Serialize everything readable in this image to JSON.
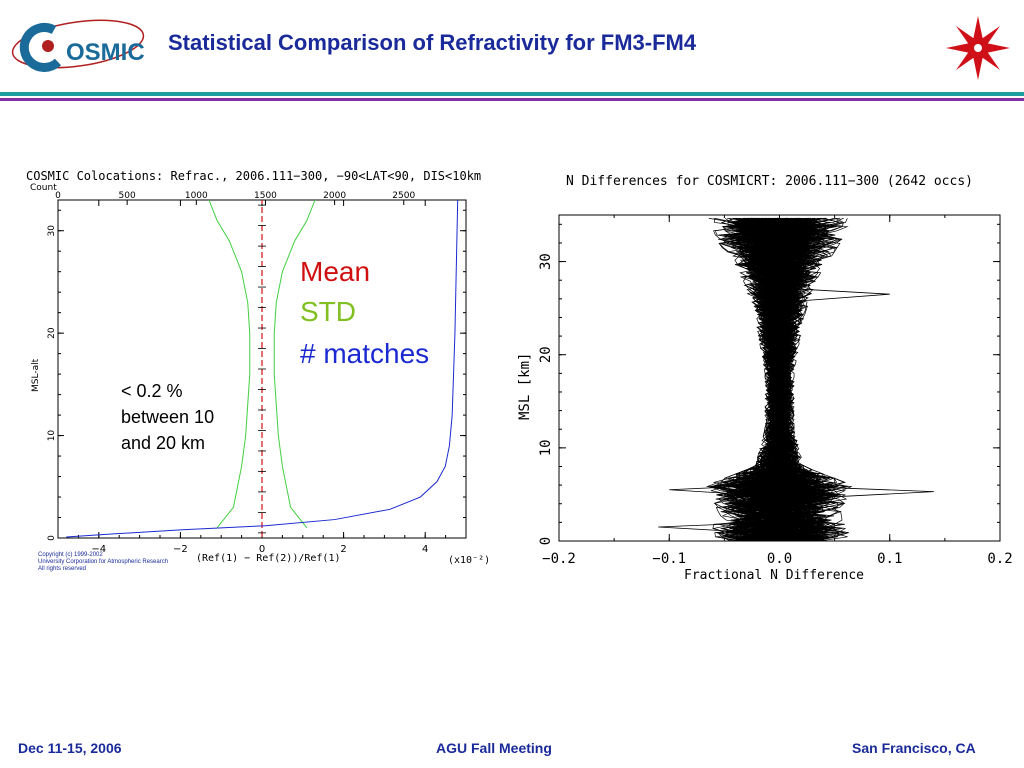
{
  "header": {
    "title": "Statistical Comparison of Refractivity for FM3-FM4",
    "logo_text": "COSMIC"
  },
  "footer": {
    "left": "Dec 11-15, 2006",
    "center": "AGU Fall Meeting",
    "right": "San Francisco, CA"
  },
  "legend": {
    "mean": "Mean",
    "std": "STD",
    "matches": "# matches",
    "mean_color": "#d01010",
    "std_color": "#80c020",
    "matches_color": "#1a2ad0"
  },
  "annotation": [
    "< 0.2 %",
    "between 10",
    "and 20 km"
  ],
  "copyright": [
    "Copyright (c) 1999-2002",
    "University Corporation for Atmospheric Research",
    "All rights reserved"
  ],
  "chart_data": [
    {
      "type": "line",
      "title": "COSMIC Colocations: Refrac., 2006.111−300, −90<LAT<90, DIS<10km",
      "top_axis_label": "Count",
      "top_ticks": [
        0,
        500,
        1000,
        1500,
        2000,
        2500
      ],
      "xlabel": "(Ref(1) − Ref(2))/Ref(1)",
      "x_scale_label": "(x10⁻²)",
      "xticks": [
        -4,
        -2,
        0,
        2,
        4
      ],
      "ylabel": "MSL-alt",
      "yticks": [
        0,
        10,
        20,
        30
      ],
      "xlim": [
        -5,
        5
      ],
      "ylim": [
        0,
        33
      ],
      "count_lim": [
        0,
        2950
      ],
      "series": [
        {
          "name": "Mean",
          "color": "#d01010",
          "points": [
            [
              0,
              0.1
            ],
            [
              0,
              33
            ]
          ]
        },
        {
          "name": "STD",
          "color": "#40d040",
          "left_points": [
            [
              -1.1,
              1
            ],
            [
              -0.7,
              3
            ],
            [
              -0.6,
              5
            ],
            [
              -0.5,
              7
            ],
            [
              -0.4,
              10
            ],
            [
              -0.35,
              13
            ],
            [
              -0.3,
              16
            ],
            [
              -0.3,
              20
            ],
            [
              -0.35,
              23
            ],
            [
              -0.5,
              26
            ],
            [
              -0.8,
              29
            ],
            [
              -1.1,
              31
            ],
            [
              -1.3,
              33
            ]
          ],
          "right_points": [
            [
              1.1,
              1
            ],
            [
              0.7,
              3
            ],
            [
              0.6,
              5
            ],
            [
              0.5,
              7
            ],
            [
              0.4,
              10
            ],
            [
              0.35,
              13
            ],
            [
              0.3,
              16
            ],
            [
              0.3,
              20
            ],
            [
              0.35,
              23
            ],
            [
              0.5,
              26
            ],
            [
              0.8,
              29
            ],
            [
              1.1,
              31
            ],
            [
              1.3,
              33
            ]
          ]
        },
        {
          "name": "# matches",
          "color": "#1a2ad0",
          "count_points": [
            [
              60,
              0.1
            ],
            [
              400,
              0.4
            ],
            [
              900,
              0.8
            ],
            [
              1500,
              1.2
            ],
            [
              2000,
              1.8
            ],
            [
              2400,
              2.8
            ],
            [
              2620,
              4
            ],
            [
              2740,
              5.5
            ],
            [
              2800,
              7
            ],
            [
              2830,
              9
            ],
            [
              2850,
              12
            ],
            [
              2870,
              20
            ],
            [
              2890,
              33
            ]
          ]
        }
      ]
    },
    {
      "type": "line",
      "title": "N Differences for COSMICRT: 2006.111−300 (2642 occs)",
      "xlabel": "Fractional N Difference",
      "ylabel": "MSL [km]",
      "xticks": [
        -0.2,
        -0.1,
        0.0,
        0.1,
        0.2
      ],
      "yticks": [
        0,
        10,
        20,
        30
      ],
      "xlim": [
        -0.2,
        0.2
      ],
      "ylim": [
        0,
        35
      ],
      "series_count": 2642,
      "envelope": [
        [
          0,
          0.06
        ],
        [
          3,
          0.05
        ],
        [
          6,
          0.06
        ],
        [
          8,
          0.02
        ],
        [
          12,
          0.012
        ],
        [
          18,
          0.012
        ],
        [
          24,
          0.02
        ],
        [
          28,
          0.03
        ],
        [
          32,
          0.05
        ],
        [
          35,
          0.06
        ]
      ],
      "outliers": [
        {
          "x": 0.14,
          "y": 5.3
        },
        {
          "x": 0.1,
          "y": 26.5
        },
        {
          "x": -0.1,
          "y": 5.5
        },
        {
          "x": -0.11,
          "y": 1.5
        }
      ]
    }
  ]
}
